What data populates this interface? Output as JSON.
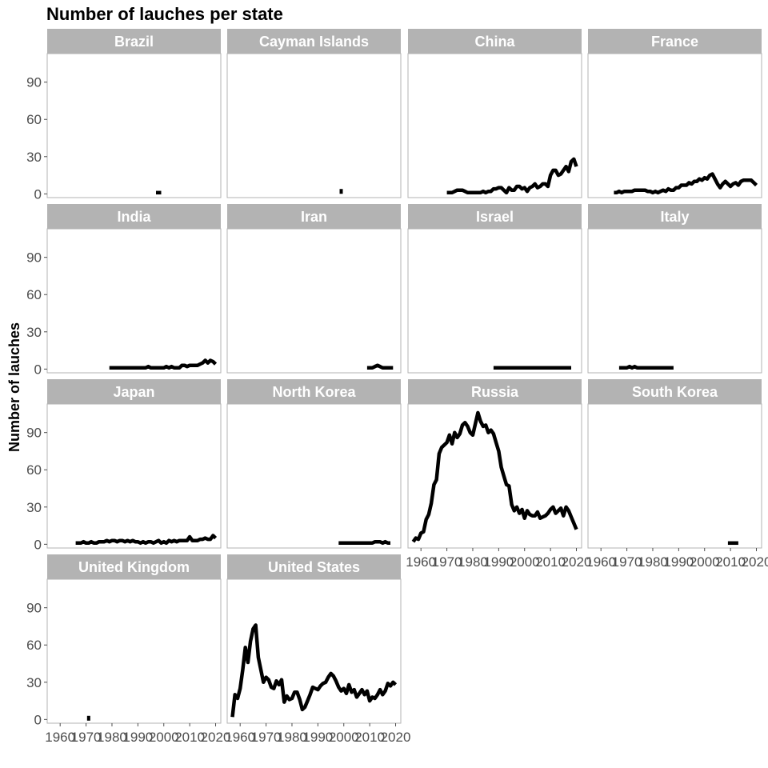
{
  "chart_data": {
    "type": "line",
    "title": "Number of lauches per state",
    "ylabel": "Number of lauches",
    "xlabel": "",
    "facet_layout": {
      "columns": 4,
      "rows": 4
    },
    "shared_y": true,
    "ylim": [
      -3,
      113
    ],
    "xlim": [
      1955,
      2022
    ],
    "y_ticks": [
      0,
      30,
      60,
      90
    ],
    "x_ticks": [
      1960,
      1970,
      1980,
      1990,
      2000,
      2010,
      2020
    ],
    "x_tick_labels": [
      "1960",
      "1970",
      "1980",
      "1990",
      "2000",
      "2010",
      "2020"
    ],
    "line_color": "#000000",
    "strip_color": "#b3b3b3",
    "grid": false,
    "panels": [
      {
        "state": "Brazil",
        "x": [
          1997,
          1998,
          1999
        ],
        "y": [
          1,
          1,
          1
        ]
      },
      {
        "state": "Cayman Islands",
        "x": [
          1999
        ],
        "y": [
          2
        ]
      },
      {
        "state": "China",
        "x": [
          1970,
          1971,
          1972,
          1973,
          1974,
          1975,
          1976,
          1977,
          1978,
          1979,
          1980,
          1981,
          1982,
          1983,
          1984,
          1985,
          1986,
          1987,
          1988,
          1989,
          1990,
          1991,
          1992,
          1993,
          1994,
          1995,
          1996,
          1997,
          1998,
          1999,
          2000,
          2001,
          2002,
          2003,
          2004,
          2005,
          2006,
          2007,
          2008,
          2009,
          2010,
          2011,
          2012,
          2013,
          2014,
          2015,
          2016,
          2017,
          2018,
          2019,
          2020
        ],
        "y": [
          1,
          1,
          1,
          2,
          3,
          3,
          3,
          2,
          1,
          1,
          1,
          1,
          1,
          1,
          2,
          1,
          2,
          2,
          4,
          4,
          5,
          5,
          3,
          1,
          5,
          3,
          3,
          6,
          6,
          4,
          5,
          2,
          5,
          6,
          8,
          5,
          6,
          8,
          8,
          6,
          15,
          19,
          19,
          15,
          16,
          19,
          22,
          18,
          26,
          28,
          22
        ]
      },
      {
        "state": "France",
        "x": [
          1965,
          1966,
          1967,
          1968,
          1969,
          1970,
          1971,
          1972,
          1973,
          1974,
          1975,
          1976,
          1977,
          1978,
          1979,
          1980,
          1981,
          1982,
          1983,
          1984,
          1985,
          1986,
          1987,
          1988,
          1989,
          1990,
          1991,
          1992,
          1993,
          1994,
          1995,
          1996,
          1997,
          1998,
          1999,
          2000,
          2001,
          2002,
          2003,
          2004,
          2005,
          2006,
          2007,
          2008,
          2009,
          2010,
          2011,
          2012,
          2013,
          2014,
          2015,
          2016,
          2017,
          2018,
          2019,
          2020
        ],
        "y": [
          1,
          1,
          2,
          1,
          2,
          2,
          2,
          2,
          3,
          3,
          3,
          3,
          3,
          2,
          2,
          1,
          2,
          1,
          2,
          3,
          2,
          4,
          3,
          3,
          5,
          5,
          7,
          7,
          7,
          9,
          8,
          10,
          10,
          12,
          11,
          13,
          12,
          15,
          16,
          12,
          8,
          5,
          8,
          10,
          8,
          6,
          8,
          9,
          7,
          10,
          11,
          11,
          11,
          11,
          9,
          7
        ]
      },
      {
        "state": "India",
        "x": [
          1979,
          1980,
          1981,
          1982,
          1983,
          1984,
          1985,
          1986,
          1987,
          1988,
          1989,
          1990,
          1991,
          1992,
          1993,
          1994,
          1995,
          1996,
          1997,
          1998,
          1999,
          2000,
          2001,
          2002,
          2003,
          2004,
          2005,
          2006,
          2007,
          2008,
          2009,
          2010,
          2011,
          2012,
          2013,
          2014,
          2015,
          2016,
          2017,
          2018,
          2019,
          2020
        ],
        "y": [
          1,
          1,
          1,
          1,
          1,
          1,
          1,
          1,
          1,
          1,
          1,
          1,
          1,
          1,
          1,
          2,
          1,
          1,
          1,
          1,
          1,
          1,
          2,
          1,
          2,
          1,
          1,
          1,
          3,
          3,
          2,
          3,
          3,
          3,
          3,
          4,
          5,
          7,
          5,
          7,
          6,
          4
        ]
      },
      {
        "state": "Iran",
        "x": [
          2009,
          2010,
          2011,
          2012,
          2013,
          2014,
          2015,
          2016,
          2017,
          2018,
          2019
        ],
        "y": [
          1,
          1,
          1,
          2,
          3,
          2,
          1,
          1,
          1,
          1,
          1
        ]
      },
      {
        "state": "Israel",
        "x": [
          1988,
          1990,
          1992,
          1994,
          1996,
          1998,
          2000,
          2002,
          2004,
          2006,
          2008,
          2010,
          2012,
          2014,
          2016,
          2018
        ],
        "y": [
          1,
          1,
          1,
          1,
          1,
          1,
          1,
          1,
          1,
          1,
          1,
          1,
          1,
          1,
          1,
          1
        ]
      },
      {
        "state": "Italy",
        "x": [
          1967,
          1968,
          1969,
          1970,
          1971,
          1972,
          1973,
          1974,
          1975,
          1976,
          1977,
          1978,
          1979,
          1980,
          1981,
          1982,
          1983,
          1984,
          1985,
          1986,
          1987,
          1988
        ],
        "y": [
          1,
          1,
          1,
          1,
          2,
          1,
          2,
          1,
          1,
          1,
          1,
          1,
          1,
          1,
          1,
          1,
          1,
          1,
          1,
          1,
          1,
          1
        ]
      },
      {
        "state": "Japan",
        "x": [
          1966,
          1967,
          1968,
          1969,
          1970,
          1971,
          1972,
          1973,
          1974,
          1975,
          1976,
          1977,
          1978,
          1979,
          1980,
          1981,
          1982,
          1983,
          1984,
          1985,
          1986,
          1987,
          1988,
          1989,
          1990,
          1991,
          1992,
          1993,
          1994,
          1995,
          1996,
          1997,
          1998,
          1999,
          2000,
          2001,
          2002,
          2003,
          2004,
          2005,
          2006,
          2007,
          2008,
          2009,
          2010,
          2011,
          2012,
          2013,
          2014,
          2015,
          2016,
          2017,
          2018,
          2019,
          2020
        ],
        "y": [
          1,
          1,
          1,
          2,
          1,
          1,
          2,
          1,
          1,
          2,
          2,
          2,
          3,
          2,
          3,
          3,
          2,
          3,
          3,
          2,
          3,
          2,
          3,
          2,
          2,
          1,
          2,
          1,
          2,
          2,
          1,
          2,
          3,
          1,
          2,
          1,
          3,
          2,
          3,
          2,
          3,
          3,
          3,
          3,
          6,
          3,
          3,
          3,
          4,
          4,
          5,
          4,
          4,
          7,
          5
        ]
      },
      {
        "state": "North Korea",
        "x": [
          1998,
          1999,
          2000,
          2001,
          2002,
          2003,
          2004,
          2005,
          2006,
          2007,
          2008,
          2009,
          2010,
          2011,
          2012,
          2013,
          2014,
          2015,
          2016,
          2017,
          2018
        ],
        "y": [
          1,
          1,
          1,
          1,
          1,
          1,
          1,
          1,
          1,
          1,
          1,
          1,
          1,
          1,
          2,
          2,
          2,
          1,
          2,
          1,
          1
        ]
      },
      {
        "state": "Russia",
        "x": [
          1957,
          1958,
          1959,
          1960,
          1961,
          1962,
          1963,
          1964,
          1965,
          1966,
          1967,
          1968,
          1969,
          1970,
          1971,
          1972,
          1973,
          1974,
          1975,
          1976,
          1977,
          1978,
          1979,
          1980,
          1981,
          1982,
          1983,
          1984,
          1985,
          1986,
          1987,
          1988,
          1989,
          1990,
          1991,
          1992,
          1993,
          1994,
          1995,
          1996,
          1997,
          1998,
          1999,
          2000,
          2001,
          2002,
          2003,
          2004,
          2005,
          2006,
          2007,
          2008,
          2009,
          2010,
          2011,
          2012,
          2013,
          2014,
          2015,
          2016,
          2017,
          2018,
          2019,
          2020
        ],
        "y": [
          2,
          5,
          4,
          9,
          10,
          20,
          24,
          33,
          48,
          52,
          73,
          78,
          80,
          82,
          88,
          81,
          90,
          86,
          89,
          96,
          98,
          95,
          90,
          88,
          97,
          106,
          99,
          95,
          96,
          90,
          92,
          89,
          82,
          75,
          62,
          55,
          48,
          47,
          32,
          27,
          30,
          25,
          28,
          21,
          27,
          24,
          23,
          23,
          26,
          21,
          22,
          23,
          25,
          28,
          30,
          25,
          27,
          29,
          23,
          30,
          27,
          22,
          17,
          12
        ]
      },
      {
        "state": "South Korea",
        "x": [
          2009,
          2010,
          2011,
          2012,
          2013
        ],
        "y": [
          1,
          1,
          1,
          1,
          1
        ]
      },
      {
        "state": "United Kingdom",
        "x": [
          1971
        ],
        "y": [
          1
        ]
      },
      {
        "state": "United States",
        "x": [
          1957,
          1958,
          1959,
          1960,
          1961,
          1962,
          1963,
          1964,
          1965,
          1966,
          1967,
          1968,
          1969,
          1970,
          1971,
          1972,
          1973,
          1974,
          1975,
          1976,
          1977,
          1978,
          1979,
          1980,
          1981,
          1982,
          1983,
          1984,
          1985,
          1986,
          1987,
          1988,
          1989,
          1990,
          1991,
          1992,
          1993,
          1994,
          1995,
          1996,
          1997,
          1998,
          1999,
          2000,
          2001,
          2002,
          2003,
          2004,
          2005,
          2006,
          2007,
          2008,
          2009,
          2010,
          2011,
          2012,
          2013,
          2014,
          2015,
          2016,
          2017,
          2018,
          2019,
          2020
        ],
        "y": [
          2,
          20,
          17,
          25,
          40,
          58,
          46,
          63,
          73,
          76,
          50,
          40,
          30,
          34,
          32,
          26,
          25,
          31,
          28,
          32,
          14,
          19,
          16,
          17,
          22,
          22,
          16,
          8,
          10,
          15,
          20,
          26,
          25,
          24,
          27,
          29,
          30,
          34,
          37,
          35,
          31,
          26,
          23,
          25,
          21,
          28,
          22,
          24,
          18,
          21,
          24,
          20,
          23,
          15,
          18,
          17,
          20,
          24,
          20,
          23,
          29,
          27,
          30,
          28
        ]
      }
    ]
  }
}
